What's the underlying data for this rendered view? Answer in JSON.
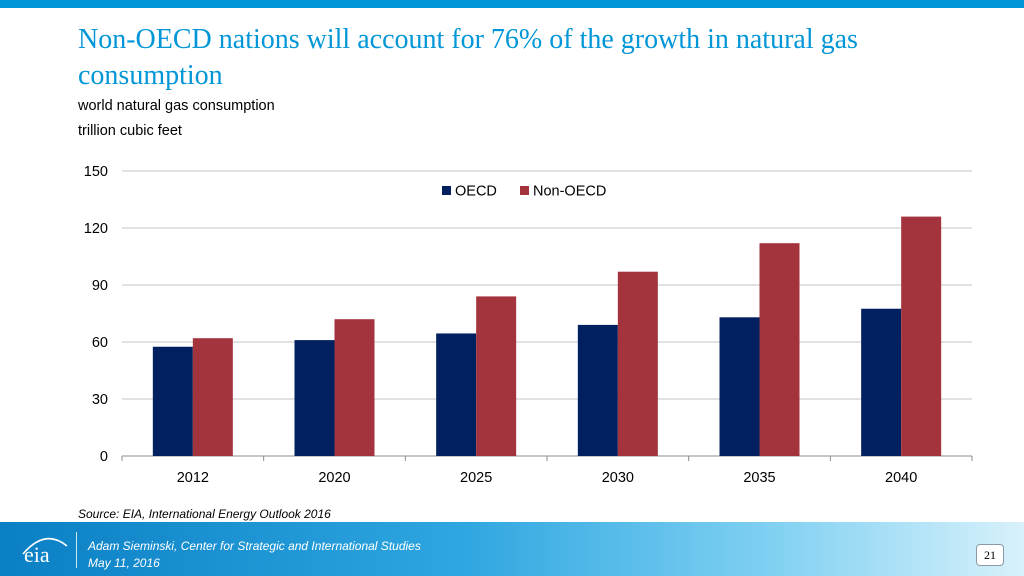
{
  "slide": {
    "title": "Non-OECD nations will account for 76% of the growth in natural gas consumption",
    "subtitle_line1": "world natural gas consumption",
    "subtitle_line2": "trillion cubic feet",
    "source": "Source:  EIA, International Energy Outlook 2016",
    "page_number": "21"
  },
  "footer": {
    "logo_text": "eia",
    "presenter": "Adam Sieminski, Center for Strategic and International Studies",
    "date": "May 11, 2016"
  },
  "colors": {
    "accent": "#0096d7",
    "oecd": "#002060",
    "non_oecd": "#a3333d"
  },
  "chart_data": {
    "type": "bar",
    "title": "world natural gas consumption",
    "xlabel": "",
    "ylabel": "trillion cubic feet",
    "categories": [
      "2012",
      "2020",
      "2025",
      "2030",
      "2035",
      "2040"
    ],
    "series": [
      {
        "name": "OECD",
        "color": "#002060",
        "values": [
          57.5,
          61,
          64.5,
          69,
          73,
          77.5
        ]
      },
      {
        "name": "Non-OECD",
        "color": "#a3333d",
        "values": [
          62,
          72,
          84,
          97,
          112,
          126
        ]
      }
    ],
    "ylim": [
      0,
      150
    ],
    "yticks": [
      0,
      30,
      60,
      90,
      120,
      150
    ],
    "grid": true,
    "legend": "top-center"
  }
}
